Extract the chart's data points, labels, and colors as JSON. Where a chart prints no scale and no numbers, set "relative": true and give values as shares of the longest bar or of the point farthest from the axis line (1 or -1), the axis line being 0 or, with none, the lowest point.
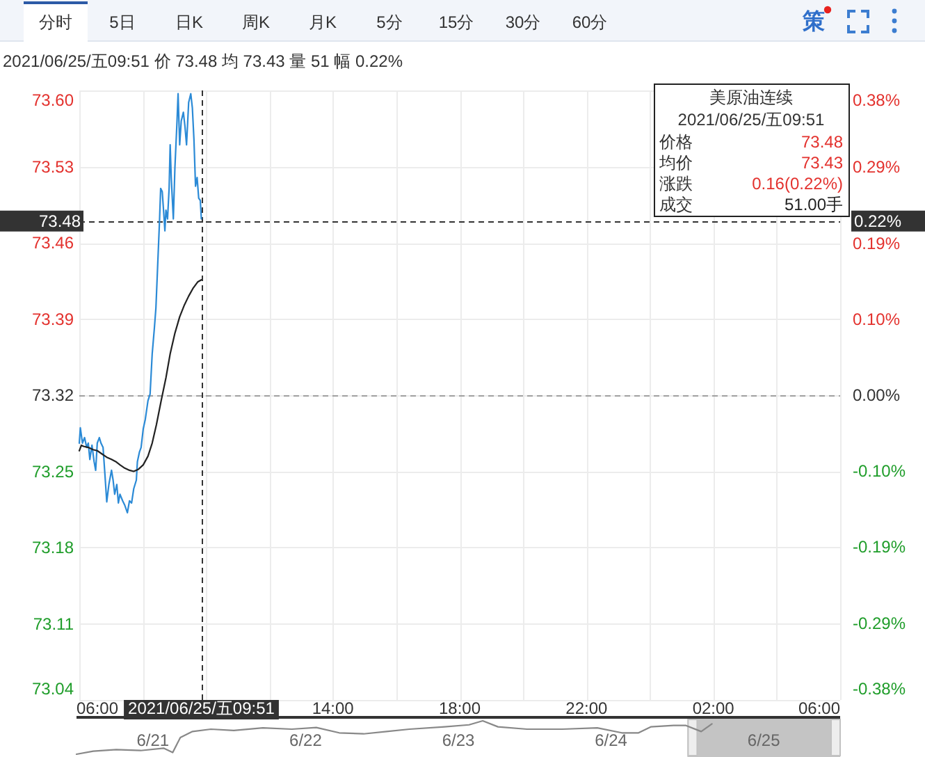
{
  "chart_data": [
    {
      "type": "line",
      "subtitle": "2021/06/25/五09:51 价 73.48 均 73.43 量 51 幅 0.22%",
      "annotations": [
        "分时",
        "5日",
        "日K",
        "周K",
        "月K",
        "5分",
        "15分",
        "30分",
        "60分",
        "策",
        "美原油连续",
        "2021/06/25/五09:51",
        "价格",
        "73.48",
        "均价",
        "73.43",
        "涨跌",
        "0.16(0.22%)",
        "成交",
        "51.00手",
        "0.22%"
      ],
      "series": [
        {
          "color": "#2b8ad6",
          "x": [
            "2021-06-25T06:00",
            "2021-06-25T06:02",
            "2021-06-25T06:06",
            "2021-06-25T06:10",
            "2021-06-25T06:14",
            "2021-06-25T06:17",
            "2021-06-25T06:20",
            "2021-06-25T06:24",
            "2021-06-25T06:28",
            "2021-06-25T06:31",
            "2021-06-25T06:34",
            "2021-06-25T06:38",
            "2021-06-25T06:41",
            "2021-06-25T06:45",
            "2021-06-25T06:48",
            "2021-06-25T06:52",
            "2021-06-25T06:56",
            "2021-06-25T07:01",
            "2021-06-25T07:04",
            "2021-06-25T07:07",
            "2021-06-25T07:11",
            "2021-06-25T07:14",
            "2021-06-25T07:17",
            "2021-06-25T07:22",
            "2021-06-25T07:26",
            "2021-06-25T07:31",
            "2021-06-25T07:35",
            "2021-06-25T07:39",
            "2021-06-25T07:43",
            "2021-06-25T07:48",
            "2021-06-25T07:50",
            "2021-06-25T07:54",
            "2021-06-25T07:57",
            "2021-06-25T08:01",
            "2021-06-25T08:05",
            "2021-06-25T08:10",
            "2021-06-25T08:14",
            "2021-06-25T08:18",
            "2021-06-25T08:22",
            "2021-06-25T08:25",
            "2021-06-25T08:28",
            "2021-06-25T08:32",
            "2021-06-25T08:34",
            "2021-06-25T08:37",
            "2021-06-25T08:40",
            "2021-06-25T08:42",
            "2021-06-25T08:44",
            "2021-06-25T08:47",
            "2021-06-25T08:50",
            "2021-06-25T08:52",
            "2021-06-25T08:54",
            "2021-06-25T08:58",
            "2021-06-25T09:01",
            "2021-06-25T09:05",
            "2021-06-25T09:07",
            "2021-06-25T09:10",
            "2021-06-25T09:13",
            "2021-06-25T09:17",
            "2021-06-25T09:20",
            "2021-06-25T09:23",
            "2021-06-25T09:27",
            "2021-06-25T09:31",
            "2021-06-25T09:34",
            "2021-06-25T09:37",
            "2021-06-25T09:40",
            "2021-06-25T09:43",
            "2021-06-25T09:46",
            "2021-06-25T09:49",
            "2021-06-25T09:51"
          ],
          "values": [
            73.276,
            73.29,
            73.276,
            73.281,
            73.272,
            73.276,
            73.261,
            73.274,
            73.259,
            73.251,
            73.276,
            73.281,
            73.276,
            73.272,
            73.251,
            73.222,
            73.238,
            73.251,
            73.242,
            73.229,
            73.238,
            73.221,
            73.229,
            73.223,
            73.219,
            73.212,
            73.223,
            73.221,
            73.234,
            73.242,
            73.259,
            73.268,
            73.272,
            73.289,
            73.298,
            73.315,
            73.321,
            73.358,
            73.381,
            73.4,
            73.435,
            73.482,
            73.51,
            73.507,
            73.486,
            73.471,
            73.49,
            73.482,
            73.51,
            73.55,
            73.52,
            73.482,
            73.529,
            73.572,
            73.597,
            73.55,
            73.572,
            73.58,
            73.567,
            73.55,
            73.589,
            73.597,
            73.584,
            73.555,
            73.512,
            73.52,
            73.501,
            73.499,
            73.482
          ]
        },
        {
          "color": "#222222",
          "x": [
            "2021-06-25T06:00",
            "2021-06-25T06:04",
            "2021-06-25T06:08",
            "2021-06-25T06:17",
            "2021-06-25T06:26",
            "2021-06-25T06:34",
            "2021-06-25T06:43",
            "2021-06-25T06:52",
            "2021-06-25T07:01",
            "2021-06-25T07:09",
            "2021-06-25T07:17",
            "2021-06-25T07:26",
            "2021-06-25T07:35",
            "2021-06-25T07:43",
            "2021-06-25T07:52",
            "2021-06-25T08:01",
            "2021-06-25T08:10",
            "2021-06-25T08:18",
            "2021-06-25T08:26",
            "2021-06-25T08:35",
            "2021-06-25T08:44",
            "2021-06-25T08:52",
            "2021-06-25T09:01",
            "2021-06-25T09:10",
            "2021-06-25T09:19",
            "2021-06-25T09:27",
            "2021-06-25T09:35",
            "2021-06-25T09:44",
            "2021-06-25T09:51"
          ],
          "values": [
            73.269,
            73.274,
            73.273,
            73.272,
            73.27,
            73.269,
            73.266,
            73.263,
            73.261,
            73.259,
            73.256,
            73.253,
            73.251,
            73.25,
            73.252,
            73.256,
            73.264,
            73.276,
            73.293,
            73.315,
            73.336,
            73.358,
            73.377,
            73.392,
            73.403,
            73.411,
            73.418,
            73.424,
            73.426
          ]
        }
      ],
      "xlim": [
        "2021-06-25T06:00",
        "2021-06-26T06:00"
      ],
      "xticks": [
        {
          "value": "2021-06-25T06:00",
          "label": "06:00"
        },
        {
          "value": "2021-06-25T08:00",
          "label": null
        },
        {
          "value": "2021-06-25T10:00",
          "label": null
        },
        {
          "value": "2021-06-25T12:00",
          "label": null
        },
        {
          "value": "2021-06-25T14:00",
          "label": "14:00"
        },
        {
          "value": "2021-06-25T16:00",
          "label": null
        },
        {
          "value": "2021-06-25T18:00",
          "label": "18:00"
        },
        {
          "value": "2021-06-25T20:00",
          "label": null
        },
        {
          "value": "2021-06-25T22:00",
          "label": "22:00"
        },
        {
          "value": "2021-06-26T00:00",
          "label": null
        },
        {
          "value": "2021-06-26T02:00",
          "label": "02:00"
        },
        {
          "value": "2021-06-26T04:00",
          "label": null
        },
        {
          "value": "2021-06-26T06:00",
          "label": "06:00"
        }
      ],
      "ylim": [
        73.04,
        73.6
      ],
      "yticks": [
        73.04,
        73.11,
        73.18,
        73.25,
        73.32,
        73.39,
        73.46,
        73.53,
        {
          "value": 73.6,
          "label": "73.60"
        }
      ],
      "y2lim": [
        -0.382,
        0.382
      ],
      "y2ticks": [
        {
          "value": -0.382,
          "label": "-0.38%"
        },
        {
          "value": -0.286,
          "label": "-0.29%"
        },
        {
          "value": -0.19,
          "label": "-0.19%"
        },
        {
          "value": -0.095,
          "label": "-0.10%"
        },
        {
          "value": 0,
          "label": "0.00%"
        },
        {
          "value": 0.095,
          "label": "0.10%"
        },
        {
          "value": 0.19,
          "label": "0.19%"
        },
        {
          "value": 0.286,
          "label": "0.29%"
        },
        {
          "value": 0.382,
          "label": "0.38%"
        }
      ],
      "grid": true,
      "ref_lines": [
        {
          "axis": "y",
          "value": 73.32,
          "color": "#a0a0a0",
          "line_style": "dashed"
        },
        {
          "axis": "y",
          "value": 73.48,
          "label": "73.48",
          "color": "#333333",
          "line_style": "dashed"
        },
        {
          "axis": "x",
          "value": "2021-06-25T09:51",
          "label": "2021/06/25/五09:51",
          "color": "#333333",
          "line_style": "dashed"
        }
      ]
    },
    {
      "type": "line",
      "relative": true,
      "color": "#888888",
      "x": [
        "2021-06-21T06:00",
        "2021-06-21T08:38",
        "2021-06-21T12:14",
        "2021-06-21T16:05",
        "2021-06-21T19:41",
        "2021-06-21T21:07",
        "2021-06-21T22:19",
        "2021-06-22T00:14",
        "2021-06-22T03:07",
        "2021-06-22T06:43",
        "2021-06-22T11:17",
        "2021-06-22T15:50",
        "2021-06-22T19:41",
        "2021-06-22T23:17",
        "2021-06-23T03:07",
        "2021-06-23T06:43",
        "2021-06-23T10:19",
        "2021-06-23T15:50",
        "2021-06-23T19:41",
        "2021-06-23T21:50",
        "2021-06-24T00:14",
        "2021-06-24T04:48",
        "2021-06-24T10:19",
        "2021-06-24T15:50",
        "2021-06-24T19:41",
        "2021-06-24T22:19",
        "2021-06-25T00:14",
        "2021-06-25T03:50",
        "2021-06-25T05:46",
        "2021-06-25T08:10",
        "2021-06-25T09:51"
      ],
      "values": [
        0,
        0.09,
        0.14,
        0.11,
        0.18,
        0.05,
        0.5,
        0.68,
        0.75,
        0.71,
        0.79,
        0.75,
        0.8,
        0.64,
        0.61,
        0.68,
        0.75,
        0.82,
        0.88,
        1,
        0.82,
        0.75,
        0.75,
        0.79,
        0.64,
        0.64,
        0.82,
        0.86,
        0.86,
        0.68,
        0.91
      ],
      "xlim": [
        "2021-06-21T06:00",
        "2021-06-26T06:00"
      ],
      "xticks": [
        {
          "value": "2021-06-21T18:00",
          "label": "6/21"
        },
        {
          "value": "2021-06-22T18:00",
          "label": "6/22"
        },
        {
          "value": "2021-06-23T18:00",
          "label": "6/23"
        },
        {
          "value": "2021-06-24T18:00",
          "label": "6/24"
        },
        {
          "value": "2021-06-25T18:00",
          "label": "6/25"
        }
      ],
      "bands": [
        {
          "axis": "x",
          "from": "2021-06-25T06:00",
          "to": "2021-06-26T06:00",
          "color": "#c4c4c4"
        }
      ]
    }
  ]
}
